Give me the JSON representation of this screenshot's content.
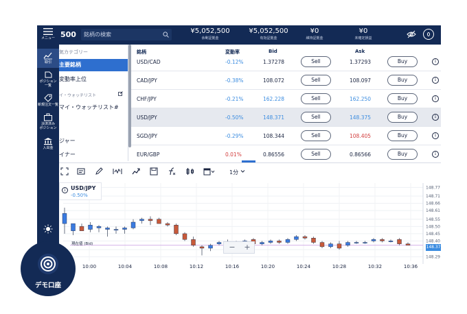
{
  "nav": {
    "menu_label": "メニュー",
    "items": [
      {
        "label": "取引"
      },
      {
        "label": "ポジション\n一覧"
      },
      {
        "label": "新規注文一覧"
      },
      {
        "label": "決済済み\nポジション"
      },
      {
        "label": "入出金"
      }
    ]
  },
  "header": {
    "logo_fragment": "500",
    "search_placeholder": "銘柄の検索",
    "accounts": [
      {
        "value": "¥5,052,500",
        "label": "余剰証拠金"
      },
      {
        "value": "¥5,052,500",
        "label": "有効証拠金"
      },
      {
        "value": "¥0",
        "label": "維持証拠金"
      },
      {
        "value": "¥0",
        "label": "未確定損益"
      }
    ]
  },
  "categories": {
    "header": "気カテゴリー",
    "items": [
      {
        "label": "主要銘柄",
        "active": true
      },
      {
        "label": "変動率上位",
        "active": false
      }
    ],
    "watch_sub": "イ・ウォッチリスト",
    "watch_main": "マイ・ウォッチリスト#",
    "extra1": "ジャー",
    "extra2": "イナー"
  },
  "table": {
    "headers": {
      "pair": "銘柄",
      "change": "変動率",
      "bid": "Bid",
      "ask": "Ask"
    },
    "sell_label": "Sell",
    "buy_label": "Buy",
    "info_glyph": "i",
    "rows": [
      {
        "pair": "USD/CAD",
        "change": "-0.12%",
        "bid": "1.37278",
        "ask": "1.37293"
      },
      {
        "pair": "CAD/JPY",
        "change": "-0.38%",
        "bid": "108.072",
        "ask": "108.097"
      },
      {
        "pair": "CHF/JPY",
        "change": "-0.21%",
        "bid": "162.228",
        "ask": "162.250"
      },
      {
        "pair": "USD/JPY",
        "change": "-0.50%",
        "bid": "148.371",
        "ask": "148.375"
      },
      {
        "pair": "SGD/JPY",
        "change": "-0.29%",
        "bid": "108.344",
        "ask": "108.405"
      },
      {
        "pair": "EUR/GBP",
        "change": "0.01%",
        "bid": "0.86556",
        "ask": "0.86566"
      }
    ]
  },
  "toolbar": {
    "interval": "1分"
  },
  "chart": {
    "symbol": "USD/JPY",
    "change": "-0.50%",
    "info_glyph": "i",
    "current_label": "現在値 (Bid)",
    "last_price": "148.37",
    "zoom_minus": "−",
    "zoom_plus": "+",
    "x_ticks": [
      "10:00",
      "10:04",
      "10:08",
      "10:12",
      "10:16",
      "10:20",
      "10:24",
      "10:28",
      "10:32",
      "10:36"
    ],
    "y_ticks": [
      "148.77",
      "148.71",
      "148.66",
      "148.61",
      "148.55",
      "148.50",
      "148.45",
      "148.40",
      "148.34",
      "148.29"
    ]
  },
  "chart_data": {
    "type": "candlestick",
    "ylim": [
      148.26,
      148.8
    ],
    "candles": [
      {
        "o": 148.52,
        "h": 148.63,
        "l": 148.45,
        "c": 148.59
      },
      {
        "o": 148.47,
        "h": 148.52,
        "l": 148.44,
        "c": 148.52
      },
      {
        "o": 148.5,
        "h": 148.52,
        "l": 148.47,
        "c": 148.47
      },
      {
        "o": 148.48,
        "h": 148.53,
        "l": 148.46,
        "c": 148.51
      },
      {
        "o": 148.49,
        "h": 148.51,
        "l": 148.46,
        "c": 148.5
      },
      {
        "o": 148.48,
        "h": 148.5,
        "l": 148.43,
        "c": 148.49
      },
      {
        "o": 148.48,
        "h": 148.5,
        "l": 148.45,
        "c": 148.48
      },
      {
        "o": 148.48,
        "h": 148.5,
        "l": 148.45,
        "c": 148.49
      },
      {
        "o": 148.49,
        "h": 148.55,
        "l": 148.48,
        "c": 148.53
      },
      {
        "o": 148.54,
        "h": 148.56,
        "l": 148.52,
        "c": 148.55
      },
      {
        "o": 148.55,
        "h": 148.57,
        "l": 148.51,
        "c": 148.54
      },
      {
        "o": 148.55,
        "h": 148.56,
        "l": 148.52,
        "c": 148.52
      },
      {
        "o": 148.52,
        "h": 148.53,
        "l": 148.5,
        "c": 148.51
      },
      {
        "o": 148.51,
        "h": 148.52,
        "l": 148.44,
        "c": 148.45
      },
      {
        "o": 148.45,
        "h": 148.46,
        "l": 148.4,
        "c": 148.41
      },
      {
        "o": 148.41,
        "h": 148.43,
        "l": 148.36,
        "c": 148.37
      },
      {
        "o": 148.36,
        "h": 148.37,
        "l": 148.3,
        "c": 148.35
      },
      {
        "o": 148.35,
        "h": 148.38,
        "l": 148.33,
        "c": 148.37
      },
      {
        "o": 148.38,
        "h": 148.4,
        "l": 148.37,
        "c": 148.39
      },
      {
        "o": 148.39,
        "h": 148.41,
        "l": 148.37,
        "c": 148.38
      },
      {
        "o": 148.38,
        "h": 148.4,
        "l": 148.37,
        "c": 148.39
      },
      {
        "o": 148.39,
        "h": 148.41,
        "l": 148.38,
        "c": 148.4
      },
      {
        "o": 148.41,
        "h": 148.42,
        "l": 148.38,
        "c": 148.38
      },
      {
        "o": 148.38,
        "h": 148.4,
        "l": 148.37,
        "c": 148.39
      },
      {
        "o": 148.39,
        "h": 148.41,
        "l": 148.38,
        "c": 148.4
      },
      {
        "o": 148.4,
        "h": 148.41,
        "l": 148.38,
        "c": 148.39
      },
      {
        "o": 148.39,
        "h": 148.42,
        "l": 148.38,
        "c": 148.41
      },
      {
        "o": 148.41,
        "h": 148.44,
        "l": 148.4,
        "c": 148.43
      },
      {
        "o": 148.43,
        "h": 148.44,
        "l": 148.41,
        "c": 148.42
      },
      {
        "o": 148.42,
        "h": 148.43,
        "l": 148.38,
        "c": 148.39
      },
      {
        "o": 148.39,
        "h": 148.4,
        "l": 148.35,
        "c": 148.36
      },
      {
        "o": 148.36,
        "h": 148.39,
        "l": 148.35,
        "c": 148.38
      },
      {
        "o": 148.38,
        "h": 148.4,
        "l": 148.34,
        "c": 148.35
      },
      {
        "o": 148.37,
        "h": 148.4,
        "l": 148.36,
        "c": 148.39
      },
      {
        "o": 148.39,
        "h": 148.4,
        "l": 148.38,
        "c": 148.39
      },
      {
        "o": 148.39,
        "h": 148.4,
        "l": 148.38,
        "c": 148.39
      },
      {
        "o": 148.4,
        "h": 148.42,
        "l": 148.39,
        "c": 148.41
      },
      {
        "o": 148.41,
        "h": 148.42,
        "l": 148.39,
        "c": 148.4
      },
      {
        "o": 148.4,
        "h": 148.41,
        "l": 148.39,
        "c": 148.4
      },
      {
        "o": 148.41,
        "h": 148.42,
        "l": 148.37,
        "c": 148.38
      },
      {
        "o": 148.38,
        "h": 148.39,
        "l": 148.37,
        "c": 148.37
      }
    ]
  },
  "demo": {
    "label": "デモ口座"
  }
}
